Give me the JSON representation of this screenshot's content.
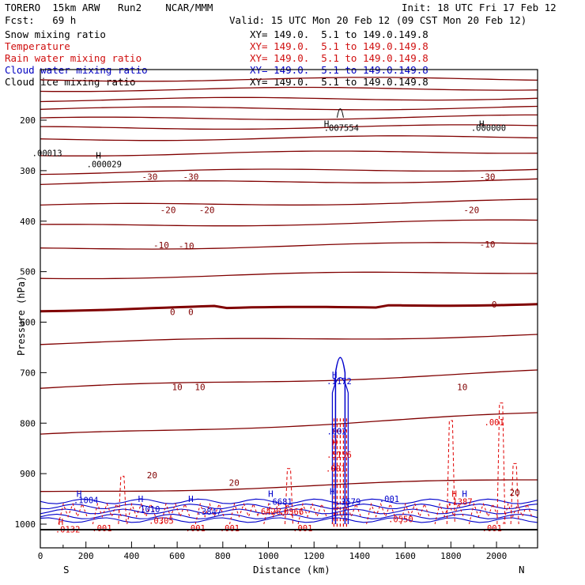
{
  "header": {
    "model": "TORERO  15km ARW   Run2    NCAR/MMM",
    "init": "Init: 18 UTC Fri 17 Feb 12",
    "fcst": "Fcst:   69 h",
    "valid": "Valid: 15 UTC Mon 20 Feb 12 (09 CST Mon 20 Feb 12)"
  },
  "fields": [
    {
      "name": "Snow mixing ratio",
      "xy": "",
      "color": "#000000"
    },
    {
      "name": "Temperature",
      "xy": "XY= 149.0.  5.1 to 149.0.149.8",
      "color": "#d01010"
    },
    {
      "name": "Rain water mixing ratio",
      "xy": "XY= 149.0.  5.1 to 149.0.149.8",
      "color": "#d01010"
    },
    {
      "name": "Cloud water mixing ratio",
      "xy": "XY= 149.0.  5.1 to 149.0.149.8",
      "color": "#0000c0"
    },
    {
      "name": "Cloud ice mixing ratio",
      "xy": "XY= 149.0.  5.1 to 149.0.149.8",
      "color": "#000000"
    }
  ],
  "snow_xy": "XY= 149.0.  5.1 to 149.0.149.8",
  "colors": {
    "temperature": "#800000",
    "rain": "#e00000",
    "cloud": "#0000cc",
    "axis": "#000000"
  },
  "chart_data": {
    "type": "contour-cross-section",
    "xlabel": "Distance (km)",
    "ylabel": "Pressure (hPa)",
    "x_ticks": [
      0,
      200,
      400,
      600,
      800,
      1000,
      1200,
      1400,
      1600,
      1800,
      2000
    ],
    "y_ticks": [
      200,
      300,
      400,
      500,
      600,
      700,
      800,
      900,
      1000
    ],
    "xlim": [
      0,
      2180
    ],
    "ylim": [
      1050,
      100
    ],
    "end_labels": {
      "left": "S",
      "right": "N"
    },
    "temperature_contour_labels": [
      {
        "x": 480,
        "p": 312,
        "text": "-30"
      },
      {
        "x": 660,
        "p": 312,
        "text": "-30"
      },
      {
        "x": 1960,
        "p": 312,
        "text": "-30"
      },
      {
        "x": 560,
        "p": 378,
        "text": "-20"
      },
      {
        "x": 730,
        "p": 378,
        "text": "-20"
      },
      {
        "x": 1890,
        "p": 378,
        "text": "-20"
      },
      {
        "x": 530,
        "p": 447,
        "text": "-10"
      },
      {
        "x": 640,
        "p": 449,
        "text": "-10"
      },
      {
        "x": 1960,
        "p": 446,
        "text": "-10"
      },
      {
        "x": 580,
        "p": 580,
        "text": "0"
      },
      {
        "x": 660,
        "p": 580,
        "text": "0"
      },
      {
        "x": 1990,
        "p": 565,
        "text": "0"
      },
      {
        "x": 600,
        "p": 728,
        "text": "10"
      },
      {
        "x": 700,
        "p": 728,
        "text": "10"
      },
      {
        "x": 1850,
        "p": 728,
        "text": "10"
      },
      {
        "x": 490,
        "p": 903,
        "text": "20"
      },
      {
        "x": 850,
        "p": 918,
        "text": "20"
      },
      {
        "x": 2080,
        "p": 937,
        "text": "20"
      }
    ],
    "max_labels": [
      {
        "x": 1320,
        "p": 215,
        "text": ".007554",
        "color": "#000000"
      },
      {
        "x": 1965,
        "p": 215,
        "text": ".000000",
        "color": "#000000"
      },
      {
        "x": 280,
        "p": 287,
        "text": ".000029",
        "color": "#000000"
      },
      {
        "x": 30,
        "p": 265,
        "text": ".00013",
        "color": "#000000"
      },
      {
        "x": 1310,
        "p": 717,
        "text": ".1172",
        "color": "#0000cc"
      },
      {
        "x": 1300,
        "p": 816,
        "text": ".002",
        "color": "#0000cc"
      },
      {
        "x": 1310,
        "p": 862,
        "text": ".5156",
        "color": "#e00000"
      },
      {
        "x": 1295,
        "p": 890,
        "text": ".001",
        "color": "#e00000"
      },
      {
        "x": 1350,
        "p": 955,
        "text": ".3579",
        "color": "#0000cc"
      },
      {
        "x": 1530,
        "p": 950,
        "text": ".001",
        "color": "#0000cc"
      },
      {
        "x": 1050,
        "p": 955,
        "text": ".6681",
        "color": "#0000cc"
      },
      {
        "x": 1000,
        "p": 975,
        "text": ".6426",
        "color": "#e00000"
      },
      {
        "x": 1100,
        "p": 975,
        "text": ".0366",
        "color": "#e00000"
      },
      {
        "x": 740,
        "p": 975,
        "text": ".3847",
        "color": "#0000cc"
      },
      {
        "x": 470,
        "p": 970,
        "text": ".1010",
        "color": "#0000cc"
      },
      {
        "x": 530,
        "p": 993,
        "text": ".0305",
        "color": "#e00000"
      },
      {
        "x": 200,
        "p": 952,
        "text": ".1004",
        "color": "#0000cc"
      },
      {
        "x": 120,
        "p": 1010,
        "text": ".0132",
        "color": "#e00000"
      },
      {
        "x": 1580,
        "p": 990,
        "text": ".0550",
        "color": "#e00000"
      },
      {
        "x": 1840,
        "p": 955,
        "text": ".1387",
        "color": "#e00000"
      },
      {
        "x": 1990,
        "p": 798,
        "text": ".001",
        "color": "#e00000"
      },
      {
        "x": 270,
        "p": 1008,
        "text": ".001",
        "color": "#e00000"
      },
      {
        "x": 680,
        "p": 1008,
        "text": ".001",
        "color": "#e00000"
      },
      {
        "x": 830,
        "p": 1008,
        "text": ".001",
        "color": "#e00000"
      },
      {
        "x": 1150,
        "p": 1008,
        "text": ".001",
        "color": "#e00000"
      },
      {
        "x": 1980,
        "p": 1008,
        "text": ".001",
        "color": "#e00000"
      }
    ],
    "h_markers": [
      {
        "x": 1255,
        "p": 207,
        "color": "#000000"
      },
      {
        "x": 1935,
        "p": 207,
        "color": "#000000"
      },
      {
        "x": 255,
        "p": 270,
        "color": "#000000"
      },
      {
        "x": 1290,
        "p": 704,
        "color": "#0000cc"
      },
      {
        "x": 1290,
        "p": 838,
        "color": "#e00000"
      },
      {
        "x": 1280,
        "p": 935,
        "color": "#0000cc"
      },
      {
        "x": 440,
        "p": 950,
        "color": "#0000cc"
      },
      {
        "x": 660,
        "p": 950,
        "color": "#0000cc"
      },
      {
        "x": 1010,
        "p": 940,
        "color": "#0000cc"
      },
      {
        "x": 170,
        "p": 940,
        "color": "#0000cc"
      },
      {
        "x": 1815,
        "p": 940,
        "color": "#e00000"
      },
      {
        "x": 1860,
        "p": 940,
        "color": "#0000cc"
      },
      {
        "x": 90,
        "p": 995,
        "color": "#e00000"
      }
    ],
    "temperature_isotherms_p_left": [
      120,
      140,
      160,
      178,
      198,
      216,
      238,
      268,
      304,
      326,
      370,
      410,
      455,
      512,
      575,
      642,
      732,
      825,
      938
    ],
    "temperature_isotherms_p_right": [
      118,
      137,
      156,
      175,
      193,
      212,
      233,
      262,
      296,
      318,
      360,
      400,
      443,
      500,
      562,
      625,
      698,
      782,
      912
    ]
  }
}
